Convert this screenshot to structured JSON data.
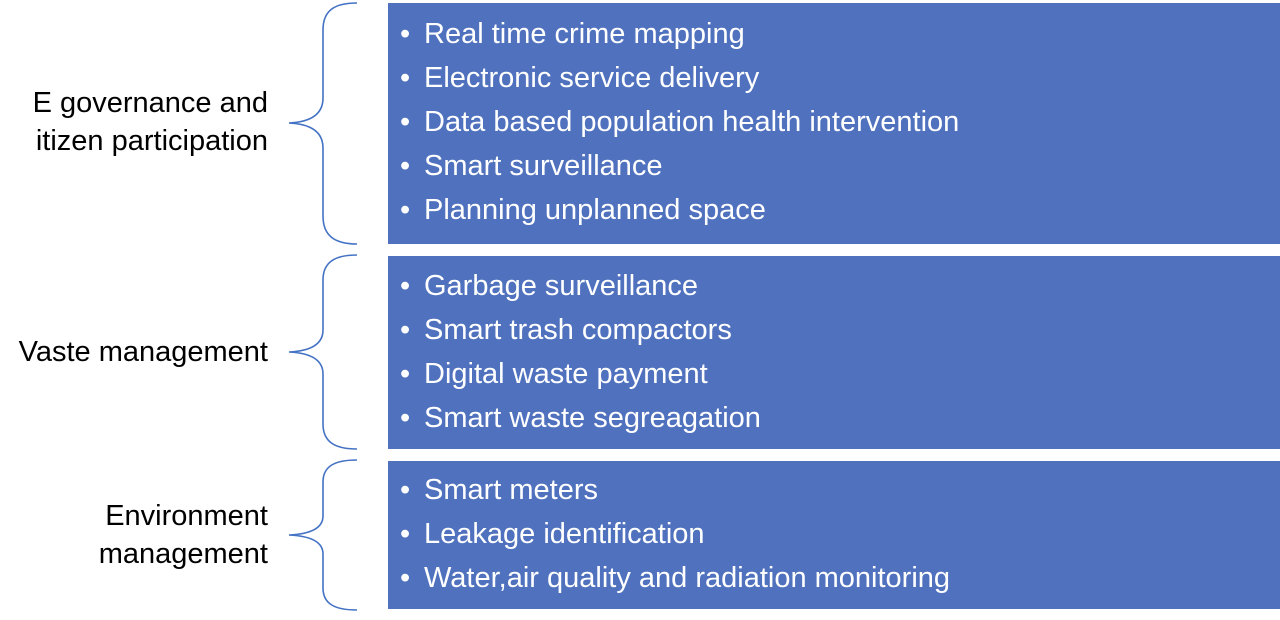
{
  "colors": {
    "box_fill": "#4F71BE",
    "brace_stroke": "#4472C4",
    "item_text": "#FFFFFF",
    "label_text": "#000000"
  },
  "bullet_glyph": "•",
  "groups": [
    {
      "label_lines": [
        "E governance and",
        "itizen participation"
      ],
      "items": [
        "Real time crime mapping",
        "Electronic service delivery",
        "Data based population health intervention",
        "Smart surveillance",
        "Planning unplanned space"
      ]
    },
    {
      "label_lines": [
        "Vaste management"
      ],
      "items": [
        "Garbage surveillance",
        "Smart trash compactors",
        "Digital waste payment",
        "Smart waste segreagation"
      ]
    },
    {
      "label_lines": [
        "Environment",
        "management"
      ],
      "items": [
        "Smart meters",
        "Leakage identification",
        "Water,air quality and radiation monitoring"
      ]
    }
  ]
}
